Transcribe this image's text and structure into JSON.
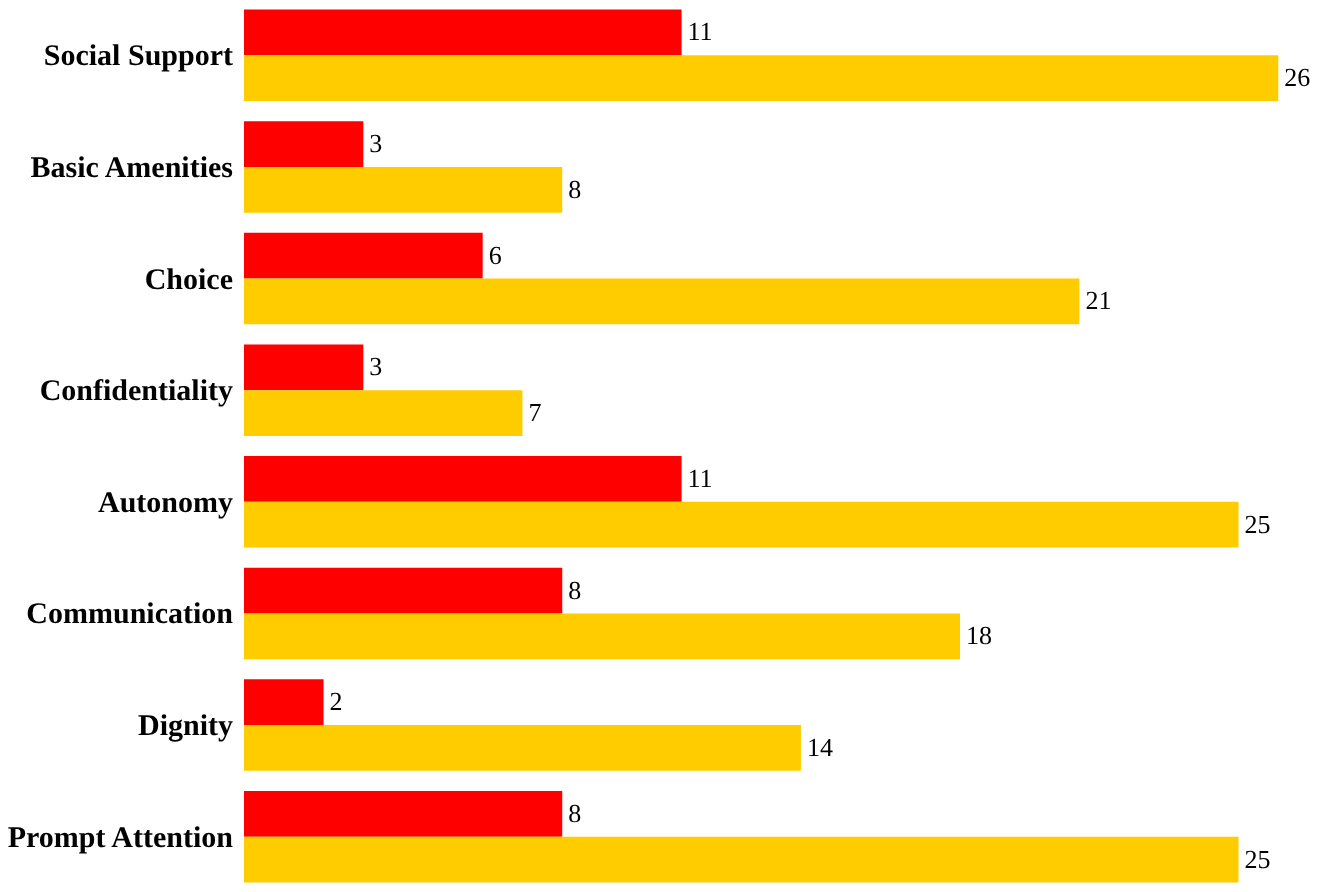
{
  "chart_data": {
    "type": "bar",
    "orientation": "horizontal",
    "categories": [
      "Social Support",
      "Basic Amenities",
      "Choice",
      "Confidentiality",
      "Autonomy",
      "Communication",
      "Dignity",
      "Prompt Attention"
    ],
    "series": [
      {
        "color": "#ff0000",
        "values": [
          11,
          3,
          6,
          3,
          11,
          8,
          2,
          8
        ]
      },
      {
        "color": "#ffcc00",
        "values": [
          26,
          8,
          21,
          7,
          25,
          18,
          14,
          25
        ]
      }
    ],
    "data_labels": true,
    "grid": false,
    "legend": false
  }
}
